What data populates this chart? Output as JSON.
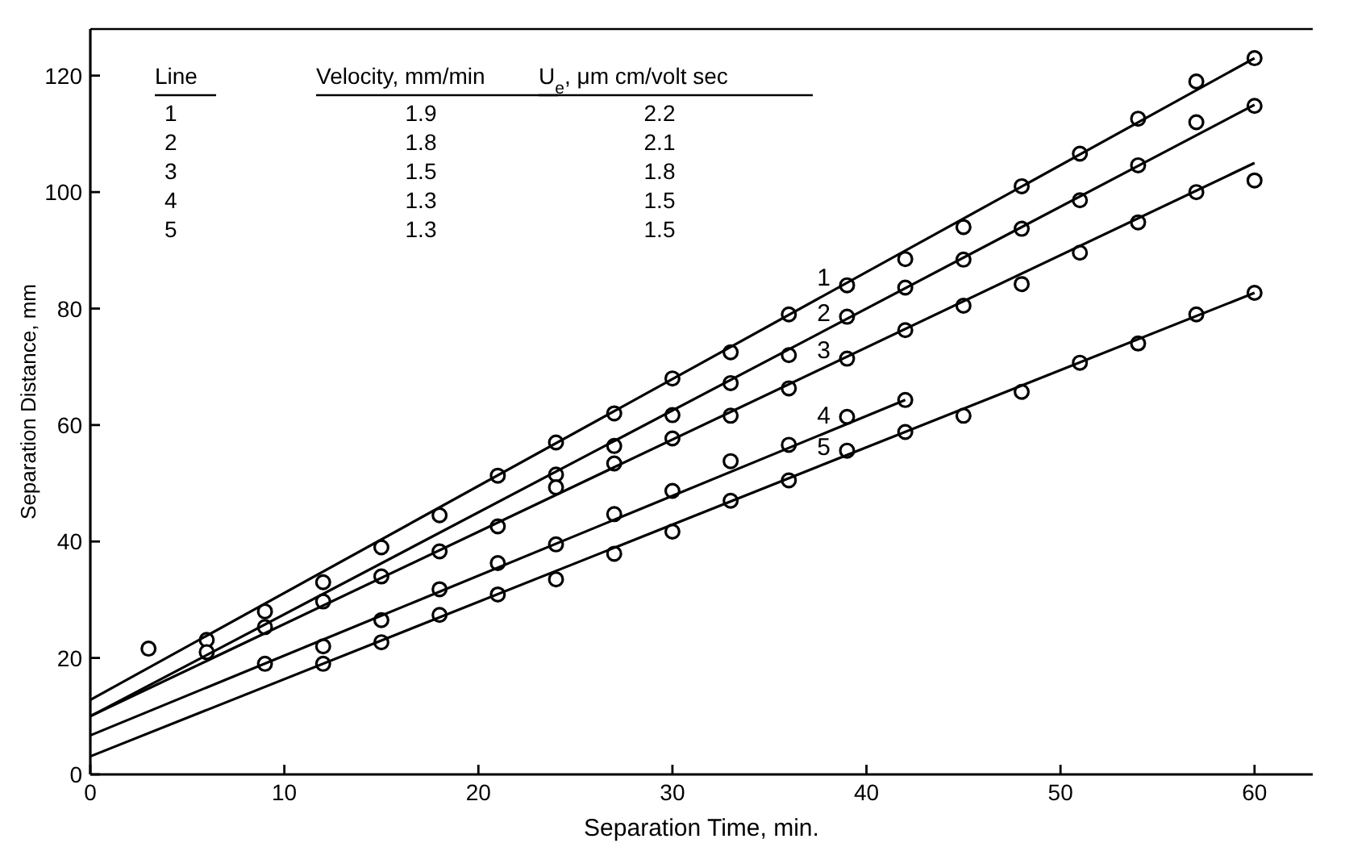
{
  "chart_data": {
    "type": "scatter",
    "xlabel": "Separation Time, min.",
    "ylabel": "Separation Distance, mm",
    "xlim": [
      0,
      63
    ],
    "ylim": [
      0,
      128
    ],
    "xticks": [
      0,
      10,
      20,
      30,
      40,
      50,
      60
    ],
    "yticks": [
      0,
      20,
      40,
      60,
      80,
      100,
      120
    ],
    "grid": false,
    "legend": "top left",
    "annotations": [
      "Line",
      "Velocity, mm/min",
      "U$_{e}$, μm cm/volt sec",
      "1",
      "1.9",
      "2.2",
      "2",
      "1.8",
      "2.1",
      "3",
      "1.5",
      "1.8",
      "4",
      "1.3",
      "1.5",
      "5",
      "1.3",
      "1.5"
    ],
    "series": [
      {
        "marker": "circle",
        "color": "#000000",
        "x": [
          3,
          6,
          9,
          12,
          15,
          18,
          21,
          24,
          27,
          30,
          33,
          36,
          39,
          42,
          45,
          48,
          51,
          54,
          57,
          60
        ],
        "values": [
          21.6,
          23.1,
          28,
          33,
          39,
          44.5,
          51.3,
          57,
          62,
          68,
          72.5,
          79,
          84,
          88.5,
          94,
          101,
          106.6,
          112.6,
          119,
          123
        ]
      },
      {
        "marker": "circle",
        "color": "#000000",
        "x": [
          24,
          27,
          30,
          33,
          36,
          39,
          42,
          45,
          48,
          51,
          54,
          57,
          60
        ],
        "values": [
          51.5,
          56.4,
          61.7,
          67.2,
          72,
          78.6,
          83.6,
          88.4,
          93.7,
          98.6,
          104.6,
          112,
          114.8
        ]
      },
      {
        "marker": "circle",
        "color": "#000000",
        "x": [
          6,
          9,
          12,
          15,
          18,
          21,
          24,
          27,
          30,
          33,
          36,
          39,
          42,
          45,
          48,
          51,
          54,
          57,
          60
        ],
        "values": [
          21,
          25.3,
          29.7,
          34,
          38.3,
          42.6,
          49.3,
          53.4,
          57.7,
          61.6,
          66.3,
          71.4,
          76.3,
          80.5,
          84.2,
          89.6,
          94.8,
          100,
          102
        ]
      },
      {
        "marker": "circle",
        "color": "#000000",
        "x": [
          9,
          12,
          15,
          18,
          21,
          24,
          27,
          30,
          33,
          36,
          39,
          42
        ],
        "values": [
          19,
          22,
          26.5,
          31.8,
          36.3,
          39.5,
          44.7,
          48.7,
          53.8,
          56.6,
          61.4,
          64.3
        ]
      },
      {
        "marker": "circle",
        "color": "#000000",
        "x": [
          12,
          15,
          18,
          21,
          24,
          27,
          30,
          33,
          36,
          39,
          42,
          45,
          48,
          51,
          54,
          57,
          60
        ],
        "values": [
          19,
          22.7,
          27.4,
          30.9,
          33.5,
          37.9,
          41.7,
          47,
          50.5,
          55.6,
          58.8,
          61.6,
          65.7,
          70.7,
          74,
          79,
          82.7
        ]
      },
      {
        "type": "line",
        "marker": "none",
        "name": "1",
        "color": "#000000",
        "x": [
          0,
          60
        ],
        "values": [
          12.8,
          123
        ]
      },
      {
        "type": "line",
        "marker": "none",
        "name": "2",
        "color": "#000000",
        "x": [
          0,
          60
        ],
        "values": [
          10,
          115
        ]
      },
      {
        "type": "line",
        "marker": "none",
        "name": "3",
        "color": "#000000",
        "x": [
          0,
          60
        ],
        "values": [
          10,
          105
        ]
      },
      {
        "type": "line",
        "marker": "none",
        "name": "4",
        "color": "#000000",
        "x": [
          0,
          42
        ],
        "values": [
          6.7,
          64.3
        ]
      },
      {
        "type": "line",
        "marker": "none",
        "name": "5",
        "color": "#000000",
        "x": [
          0,
          60
        ],
        "values": [
          3.1,
          82.7
        ]
      }
    ]
  }
}
